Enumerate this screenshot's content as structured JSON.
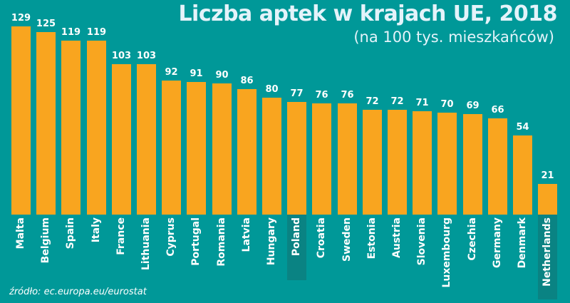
{
  "header": {
    "title": "Liczba aptek w krajach UE, 2018",
    "subtitle": "(na 100 tys. mieszkańców)"
  },
  "footer": {
    "source": "źródło: ec.europa.eu/eurostat"
  },
  "colors": {
    "background": "#009898",
    "bar": "#f9a51f",
    "highlight_label_box": "#0a8383",
    "title_text": "#e4f3fa"
  },
  "highlighted_categories": [
    "Poland",
    "Netherlands"
  ],
  "chart_data": {
    "type": "bar",
    "title": "Liczba aptek w krajach UE, 2018",
    "subtitle": "(na 100 tys. mieszkańców)",
    "xlabel": "",
    "ylabel": "",
    "categories": [
      "Malta",
      "Belgium",
      "Spain",
      "Italy",
      "France",
      "Lithuania",
      "Cyprus",
      "Portugal",
      "Romania",
      "Latvia",
      "Hungary",
      "Poland",
      "Croatia",
      "Sweden",
      "Estonia",
      "Austria",
      "Slovenia",
      "Luxembourg",
      "Czechia",
      "Germany",
      "Denmark",
      "Netherlands"
    ],
    "values": [
      129,
      125,
      119,
      119,
      103,
      103,
      92,
      91,
      90,
      86,
      80,
      77,
      76,
      76,
      72,
      72,
      71,
      70,
      69,
      66,
      54,
      21
    ],
    "value_labels": [
      "129",
      "125",
      "119",
      "119",
      "103",
      "103",
      "92",
      "91",
      "90",
      "86",
      "80",
      "77",
      "76",
      "76",
      "72",
      "72",
      "71",
      "70",
      "69",
      "66",
      "54",
      "21"
    ],
    "ylim": [
      0,
      129
    ],
    "grid": false,
    "legend": "none",
    "label_orientation": "vertical",
    "source": "źródło: ec.europa.eu/eurostat"
  }
}
